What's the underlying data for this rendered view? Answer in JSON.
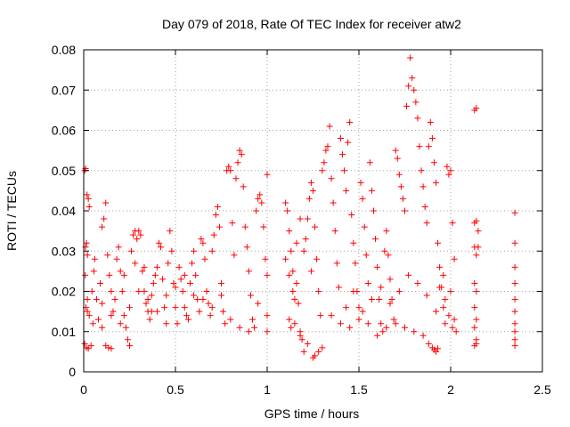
{
  "chart_data": {
    "type": "scatter",
    "title": "Day 079 of 2018, Rate Of TEC Index for receiver atw2",
    "xlabel": "GPS time / hours",
    "ylabel": "ROTI / TECUs",
    "xlim": [
      0,
      2.5
    ],
    "ylim": [
      0,
      0.08
    ],
    "xticks": [
      0,
      0.5,
      1,
      1.5,
      2,
      2.5
    ],
    "xtick_labels": [
      "0",
      "0.5",
      "1",
      "1.5",
      "2",
      "2.5"
    ],
    "yticks": [
      0,
      0.01,
      0.02,
      0.03,
      0.04,
      0.05,
      0.06,
      0.07,
      0.08
    ],
    "ytick_labels": [
      "0",
      "0.01",
      "0.02",
      "0.03",
      "0.04",
      "0.05",
      "0.06",
      "0.07",
      "0.08"
    ],
    "grid": true,
    "marker": "plus",
    "color": "#ff0000",
    "series": [
      {
        "name": "ROTI",
        "points": [
          [
            0.005,
            0.05
          ],
          [
            0.01,
            0.0505
          ],
          [
            0.018,
            0.044
          ],
          [
            0.025,
            0.043
          ],
          [
            0.03,
            0.041
          ],
          [
            0.01,
            0.031
          ],
          [
            0.015,
            0.032
          ],
          [
            0.02,
            0.029
          ],
          [
            0.008,
            0.024
          ],
          [
            0.012,
            0.016
          ],
          [
            0.02,
            0.015
          ],
          [
            0.03,
            0.014
          ],
          [
            0.005,
            0.007
          ],
          [
            0.015,
            0.006
          ],
          [
            0.025,
            0.0058
          ],
          [
            0.04,
            0.0065
          ],
          [
            0.045,
            0.02
          ],
          [
            0.055,
            0.025
          ],
          [
            0.06,
            0.028
          ],
          [
            0.07,
            0.018
          ],
          [
            0.08,
            0.013
          ],
          [
            0.09,
            0.022
          ],
          [
            0.1,
            0.036
          ],
          [
            0.11,
            0.038
          ],
          [
            0.12,
            0.042
          ],
          [
            0.13,
            0.029
          ],
          [
            0.14,
            0.024
          ],
          [
            0.15,
            0.02
          ],
          [
            0.1,
            0.011
          ],
          [
            0.12,
            0.0065
          ],
          [
            0.135,
            0.006
          ],
          [
            0.15,
            0.0058
          ],
          [
            0.16,
            0.015
          ],
          [
            0.17,
            0.018
          ],
          [
            0.18,
            0.028
          ],
          [
            0.19,
            0.031
          ],
          [
            0.2,
            0.025
          ],
          [
            0.21,
            0.02
          ],
          [
            0.22,
            0.014
          ],
          [
            0.23,
            0.011
          ],
          [
            0.24,
            0.008
          ],
          [
            0.25,
            0.0065
          ],
          [
            0.26,
            0.03
          ],
          [
            0.27,
            0.034
          ],
          [
            0.28,
            0.035
          ],
          [
            0.29,
            0.033
          ],
          [
            0.3,
            0.035
          ],
          [
            0.31,
            0.034
          ],
          [
            0.32,
            0.025
          ],
          [
            0.33,
            0.02
          ],
          [
            0.34,
            0.017
          ],
          [
            0.35,
            0.015
          ],
          [
            0.36,
            0.013
          ],
          [
            0.37,
            0.019
          ],
          [
            0.38,
            0.022
          ],
          [
            0.39,
            0.024
          ],
          [
            0.4,
            0.026
          ],
          [
            0.41,
            0.032
          ],
          [
            0.42,
            0.031
          ],
          [
            0.43,
            0.023
          ],
          [
            0.44,
            0.016
          ],
          [
            0.45,
            0.012
          ],
          [
            0.46,
            0.027
          ],
          [
            0.47,
            0.035
          ],
          [
            0.48,
            0.03
          ],
          [
            0.49,
            0.022
          ],
          [
            0.5,
            0.016
          ],
          [
            0.51,
            0.012
          ],
          [
            0.52,
            0.026
          ],
          [
            0.53,
            0.023
          ],
          [
            0.54,
            0.02
          ],
          [
            0.55,
            0.016
          ],
          [
            0.56,
            0.014
          ],
          [
            0.57,
            0.013
          ],
          [
            0.58,
            0.022
          ],
          [
            0.59,
            0.027
          ],
          [
            0.6,
            0.03
          ],
          [
            0.61,
            0.024
          ],
          [
            0.62,
            0.018
          ],
          [
            0.63,
            0.015
          ],
          [
            0.64,
            0.033
          ],
          [
            0.65,
            0.032
          ],
          [
            0.66,
            0.028
          ],
          [
            0.67,
            0.02
          ],
          [
            0.68,
            0.017
          ],
          [
            0.69,
            0.014
          ],
          [
            0.7,
            0.03
          ],
          [
            0.71,
            0.034
          ],
          [
            0.72,
            0.039
          ],
          [
            0.73,
            0.041
          ],
          [
            0.74,
            0.036
          ],
          [
            0.75,
            0.022
          ],
          [
            0.76,
            0.015
          ],
          [
            0.77,
            0.012
          ],
          [
            0.78,
            0.05
          ],
          [
            0.79,
            0.051
          ],
          [
            0.8,
            0.05
          ],
          [
            0.81,
            0.037
          ],
          [
            0.82,
            0.029
          ],
          [
            0.83,
            0.048
          ],
          [
            0.84,
            0.052
          ],
          [
            0.85,
            0.055
          ],
          [
            0.86,
            0.054
          ],
          [
            0.87,
            0.046
          ],
          [
            0.88,
            0.036
          ],
          [
            0.89,
            0.031
          ],
          [
            0.9,
            0.025
          ],
          [
            0.91,
            0.019
          ],
          [
            0.92,
            0.013
          ],
          [
            0.93,
            0.011
          ],
          [
            0.94,
            0.04
          ],
          [
            0.95,
            0.043
          ],
          [
            0.96,
            0.044
          ],
          [
            0.97,
            0.042
          ],
          [
            0.98,
            0.036
          ],
          [
            0.99,
            0.028
          ],
          [
            1.0,
            0.049
          ],
          [
            1.0,
            0.024
          ],
          [
            1.0,
            0.014
          ],
          [
            1.0,
            0.01
          ],
          [
            0.95,
            0.017
          ],
          [
            0.9,
            0.01
          ],
          [
            0.85,
            0.011
          ],
          [
            0.8,
            0.013
          ],
          [
            0.75,
            0.019
          ],
          [
            0.7,
            0.016
          ],
          [
            0.65,
            0.018
          ],
          [
            0.6,
            0.019
          ],
          [
            0.55,
            0.024
          ],
          [
            0.5,
            0.021
          ],
          [
            0.45,
            0.019
          ],
          [
            0.4,
            0.015
          ],
          [
            0.35,
            0.018
          ],
          [
            0.3,
            0.02
          ],
          [
            0.25,
            0.016
          ],
          [
            0.2,
            0.012
          ],
          [
            0.15,
            0.014
          ],
          [
            0.1,
            0.017
          ],
          [
            0.05,
            0.012
          ],
          [
            0.02,
            0.018
          ],
          [
            0.22,
            0.024
          ],
          [
            0.28,
            0.027
          ],
          [
            0.33,
            0.026
          ],
          [
            0.37,
            0.015
          ],
          [
            1.1,
            0.042
          ],
          [
            1.11,
            0.04
          ],
          [
            1.12,
            0.035
          ],
          [
            1.13,
            0.03
          ],
          [
            1.14,
            0.025
          ],
          [
            1.12,
            0.013
          ],
          [
            1.13,
            0.011
          ],
          [
            1.15,
            0.018
          ],
          [
            1.16,
            0.022
          ],
          [
            1.17,
            0.017
          ],
          [
            1.18,
            0.01
          ],
          [
            1.19,
            0.008
          ],
          [
            1.2,
            0.005
          ],
          [
            1.21,
            0.033
          ],
          [
            1.22,
            0.038
          ],
          [
            1.23,
            0.043
          ],
          [
            1.24,
            0.047
          ],
          [
            1.25,
            0.045
          ],
          [
            1.26,
            0.036
          ],
          [
            1.27,
            0.028
          ],
          [
            1.28,
            0.02
          ],
          [
            1.29,
            0.014
          ],
          [
            1.3,
            0.05
          ],
          [
            1.31,
            0.052
          ],
          [
            1.32,
            0.055
          ],
          [
            1.33,
            0.056
          ],
          [
            1.34,
            0.061
          ],
          [
            1.35,
            0.048
          ],
          [
            1.36,
            0.042
          ],
          [
            1.37,
            0.035
          ],
          [
            1.38,
            0.027
          ],
          [
            1.39,
            0.021
          ],
          [
            1.4,
            0.058
          ],
          [
            1.41,
            0.054
          ],
          [
            1.42,
            0.05
          ],
          [
            1.43,
            0.045
          ],
          [
            1.44,
            0.057
          ],
          [
            1.45,
            0.062
          ],
          [
            1.46,
            0.039
          ],
          [
            1.47,
            0.032
          ],
          [
            1.48,
            0.027
          ],
          [
            1.49,
            0.02
          ],
          [
            1.5,
            0.016
          ],
          [
            1.51,
            0.047
          ],
          [
            1.52,
            0.043
          ],
          [
            1.53,
            0.036
          ],
          [
            1.54,
            0.029
          ],
          [
            1.55,
            0.022
          ],
          [
            1.56,
            0.052
          ],
          [
            1.57,
            0.045
          ],
          [
            1.58,
            0.04
          ],
          [
            1.59,
            0.033
          ],
          [
            1.6,
            0.026
          ],
          [
            1.61,
            0.018
          ],
          [
            1.62,
            0.012
          ],
          [
            1.63,
            0.01
          ],
          [
            1.64,
            0.03
          ],
          [
            1.65,
            0.035
          ],
          [
            1.66,
            0.029
          ],
          [
            1.67,
            0.023
          ],
          [
            1.68,
            0.018
          ],
          [
            1.69,
            0.013
          ],
          [
            1.7,
            0.055
          ],
          [
            1.71,
            0.053
          ],
          [
            1.72,
            0.049
          ],
          [
            1.73,
            0.046
          ],
          [
            1.74,
            0.043
          ],
          [
            1.75,
            0.04
          ],
          [
            1.76,
            0.066
          ],
          [
            1.77,
            0.071
          ],
          [
            1.78,
            0.078
          ],
          [
            1.79,
            0.073
          ],
          [
            1.8,
            0.07
          ],
          [
            1.81,
            0.067
          ],
          [
            1.82,
            0.063
          ],
          [
            1.83,
            0.056
          ],
          [
            1.84,
            0.05
          ],
          [
            1.85,
            0.046
          ],
          [
            1.86,
            0.041
          ],
          [
            1.87,
            0.037
          ],
          [
            1.88,
            0.056
          ],
          [
            1.89,
            0.062
          ],
          [
            1.9,
            0.058
          ],
          [
            1.91,
            0.052
          ],
          [
            1.92,
            0.047
          ],
          [
            1.93,
            0.032
          ],
          [
            1.94,
            0.026
          ],
          [
            1.95,
            0.021
          ],
          [
            1.96,
            0.016
          ],
          [
            1.97,
            0.012
          ],
          [
            1.98,
            0.051
          ],
          [
            1.99,
            0.049
          ],
          [
            2.0,
            0.05
          ],
          [
            2.01,
            0.037
          ],
          [
            2.02,
            0.028
          ],
          [
            2.0,
            0.02
          ],
          [
            1.9,
            0.006
          ],
          [
            1.91,
            0.0055
          ],
          [
            1.92,
            0.005
          ],
          [
            1.93,
            0.0058
          ],
          [
            1.88,
            0.007
          ],
          [
            1.85,
            0.009
          ],
          [
            1.8,
            0.01
          ],
          [
            1.75,
            0.011
          ],
          [
            1.7,
            0.012
          ],
          [
            1.65,
            0.011
          ],
          [
            1.6,
            0.009
          ],
          [
            1.55,
            0.012
          ],
          [
            1.5,
            0.013
          ],
          [
            1.45,
            0.011
          ],
          [
            1.4,
            0.012
          ],
          [
            1.35,
            0.014
          ],
          [
            1.3,
            0.006
          ],
          [
            1.28,
            0.005
          ],
          [
            1.26,
            0.004
          ],
          [
            1.25,
            0.0035
          ],
          [
            1.22,
            0.007
          ],
          [
            1.18,
            0.009
          ],
          [
            1.15,
            0.012
          ],
          [
            1.43,
            0.016
          ],
          [
            1.47,
            0.02
          ],
          [
            1.52,
            0.015
          ],
          [
            1.57,
            0.018
          ],
          [
            1.62,
            0.021
          ],
          [
            1.67,
            0.017
          ],
          [
            1.72,
            0.02
          ],
          [
            1.77,
            0.024
          ],
          [
            1.82,
            0.022
          ],
          [
            1.87,
            0.019
          ],
          [
            1.92,
            0.015
          ],
          [
            1.97,
            0.018
          ],
          [
            2.02,
            0.013
          ],
          [
            2.03,
            0.01
          ],
          [
            2.01,
            0.011
          ],
          [
            1.99,
            0.014
          ],
          [
            1.96,
            0.024
          ],
          [
            1.94,
            0.021
          ],
          [
            1.1,
            0.028
          ],
          [
            1.12,
            0.024
          ],
          [
            1.14,
            0.02
          ],
          [
            1.16,
            0.032
          ],
          [
            1.18,
            0.038
          ],
          [
            1.2,
            0.03
          ],
          [
            1.24,
            0.025
          ],
          [
            2.13,
            0.065
          ],
          [
            2.14,
            0.0655
          ],
          [
            2.13,
            0.037
          ],
          [
            2.14,
            0.0375
          ],
          [
            2.13,
            0.031
          ],
          [
            2.14,
            0.029
          ],
          [
            2.13,
            0.022
          ],
          [
            2.14,
            0.02
          ],
          [
            2.13,
            0.016
          ],
          [
            2.14,
            0.013
          ],
          [
            2.13,
            0.011
          ],
          [
            2.14,
            0.008
          ],
          [
            2.13,
            0.0065
          ],
          [
            2.14,
            0.007
          ],
          [
            2.15,
            0.035
          ],
          [
            2.15,
            0.031
          ],
          [
            2.35,
            0.0395
          ],
          [
            2.35,
            0.032
          ],
          [
            2.35,
            0.026
          ],
          [
            2.35,
            0.022
          ],
          [
            2.35,
            0.018
          ],
          [
            2.35,
            0.015
          ],
          [
            2.35,
            0.012
          ],
          [
            2.35,
            0.01
          ],
          [
            2.35,
            0.008
          ],
          [
            2.35,
            0.0065
          ]
        ]
      }
    ]
  }
}
